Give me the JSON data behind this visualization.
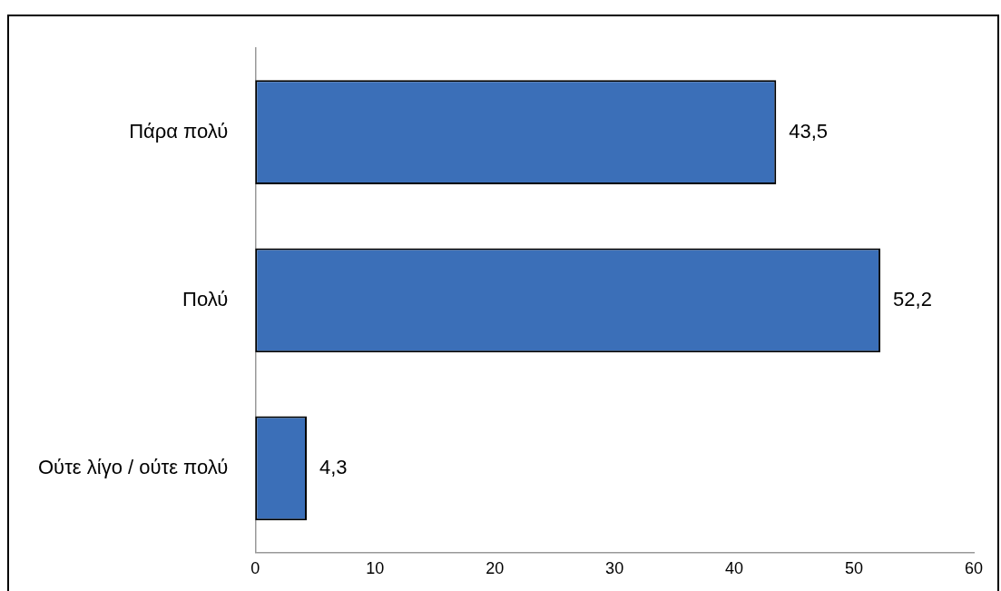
{
  "chart_data": {
    "type": "bar",
    "orientation": "horizontal",
    "categories": [
      "Πάρα πολύ",
      "Πολύ",
      "Ούτε λίγο / ούτε πολύ"
    ],
    "series": [
      {
        "color": "#3b6fb8",
        "values": [
          43.5,
          52.2,
          4.3
        ],
        "value_labels": [
          "43,5",
          "52,2",
          "4,3"
        ]
      }
    ],
    "xlim": [
      0,
      60
    ],
    "xticks": [
      0,
      10,
      20,
      30,
      40,
      50,
      60
    ],
    "grid": false,
    "legend": false
  }
}
